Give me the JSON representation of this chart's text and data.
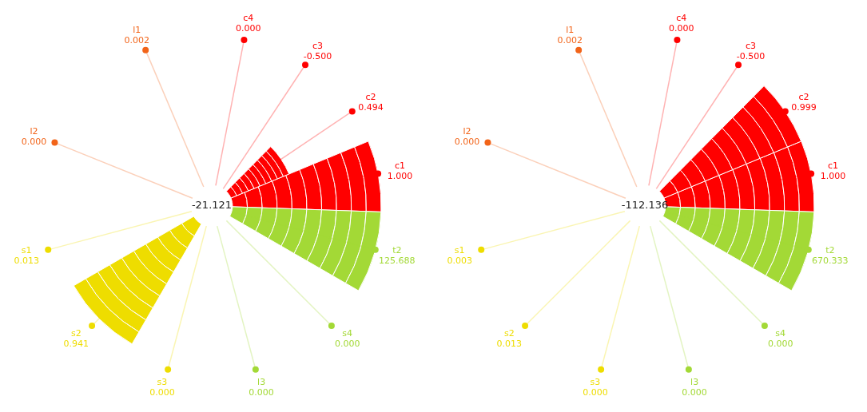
{
  "chart_data": [
    {
      "type": "other",
      "annotations": [
        "-21.121"
      ],
      "categories": [
        "c1",
        "c2",
        "c3",
        "c4",
        "l1",
        "l2",
        "s1",
        "s2",
        "s3",
        "l3",
        "s4",
        "t2"
      ],
      "values": [
        1.0,
        0.494,
        -0.5,
        0.0,
        0.002,
        0.0,
        0.013,
        0.941,
        0.0,
        0.0,
        0.0,
        125.688
      ],
      "value_labels": [
        "1.000",
        "0.494",
        "-0.500",
        "0.000",
        "0.002",
        "0.000",
        "0.013",
        "0.941",
        "0.000",
        "0.000",
        "0.000",
        "125.688"
      ],
      "colors": [
        "#ff0000",
        "#ff0000",
        "#ff0000",
        "#ff0000",
        "#f26419",
        "#f26419",
        "#eedd00",
        "#eedd00",
        "#eedd00",
        "#a3d936",
        "#a3d936",
        "#a3d936"
      ]
    },
    {
      "type": "other",
      "annotations": [
        "-112.136"
      ],
      "categories": [
        "c1",
        "c2",
        "c3",
        "c4",
        "l1",
        "l2",
        "s1",
        "s2",
        "s3",
        "l3",
        "s4",
        "t2"
      ],
      "values": [
        1.0,
        0.999,
        -0.5,
        0.0,
        0.002,
        0.0,
        0.003,
        0.013,
        0.0,
        0.0,
        0.0,
        670.333
      ],
      "value_labels": [
        "1.000",
        "0.999",
        "-0.500",
        "0.000",
        "0.002",
        "0.000",
        "0.003",
        "0.013",
        "0.000",
        "0.000",
        "0.000",
        "670.333"
      ],
      "colors": [
        "#ff0000",
        "#ff0000",
        "#ff0000",
        "#ff0000",
        "#f26419",
        "#f26419",
        "#eedd00",
        "#eedd00",
        "#eedd00",
        "#a3d936",
        "#a3d936",
        "#a3d936"
      ]
    }
  ]
}
